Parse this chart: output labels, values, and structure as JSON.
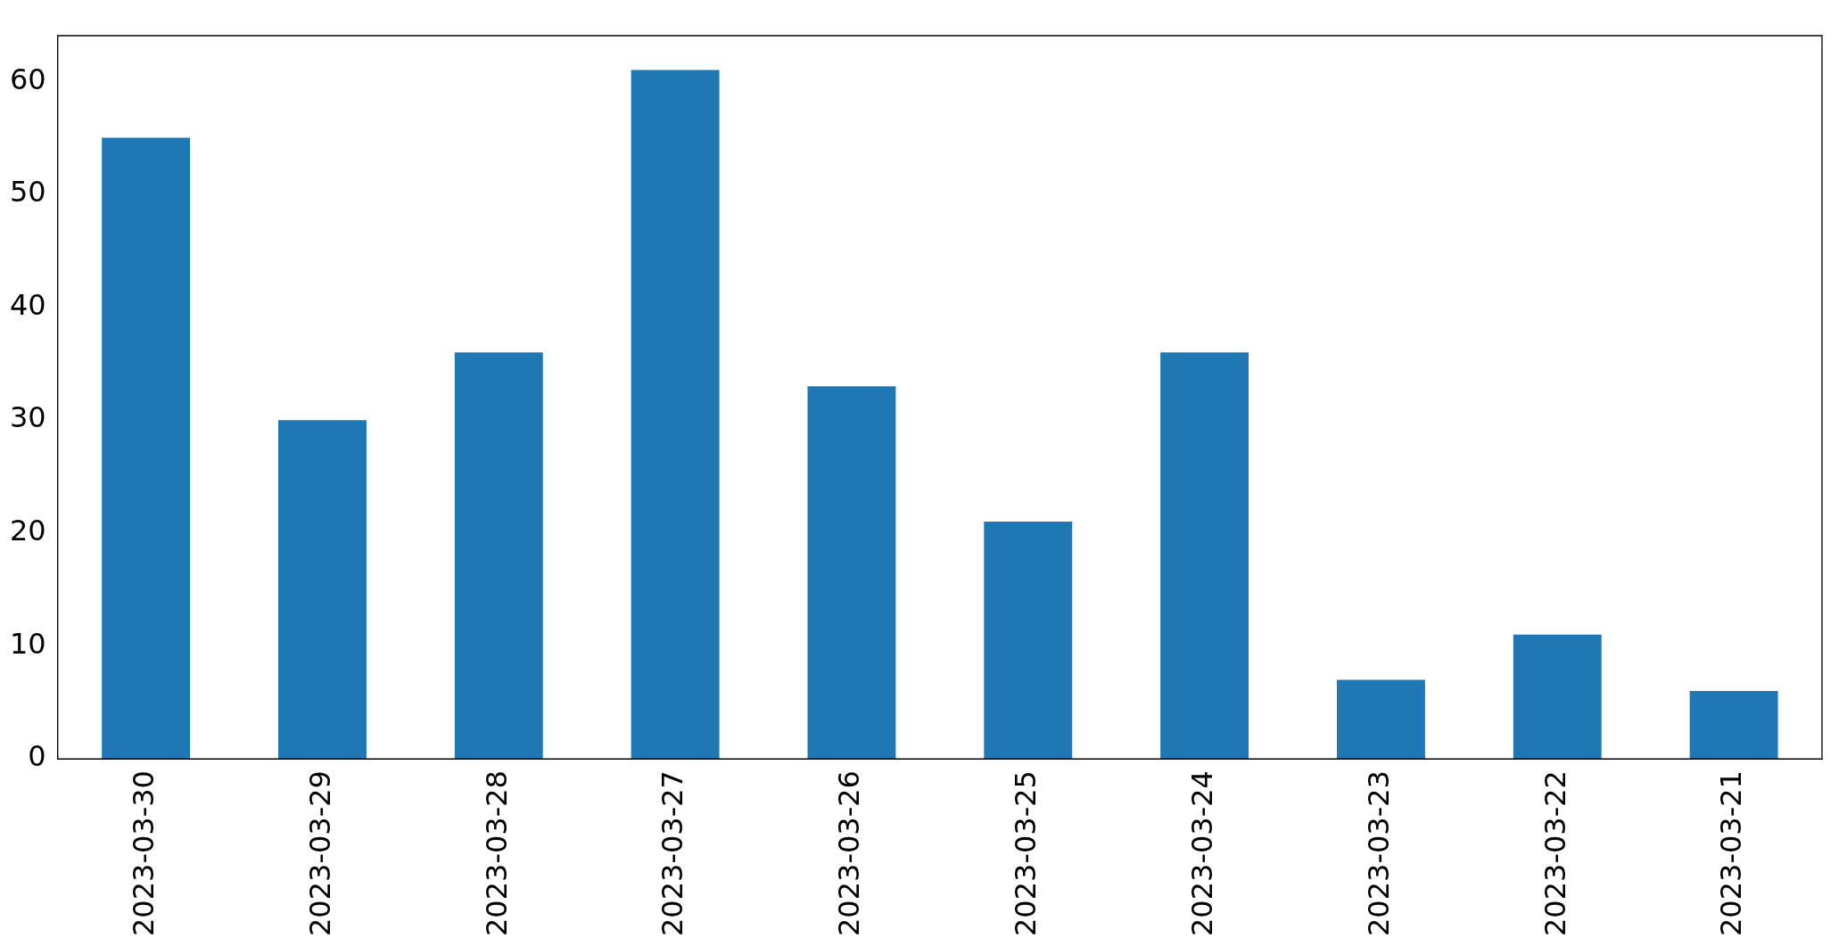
{
  "chart_data": {
    "type": "bar",
    "categories": [
      "2023-03-30",
      "2023-03-29",
      "2023-03-28",
      "2023-03-27",
      "2023-03-26",
      "2023-03-25",
      "2023-03-24",
      "2023-03-23",
      "2023-03-22",
      "2023-03-21"
    ],
    "values": [
      55,
      30,
      36,
      61,
      33,
      21,
      36,
      7,
      11,
      6
    ],
    "color": "#1f77b4",
    "ylim": [
      0,
      64.05
    ],
    "yticks": [
      0,
      10,
      20,
      30,
      40,
      50,
      60
    ],
    "grid": false,
    "legend": false
  }
}
